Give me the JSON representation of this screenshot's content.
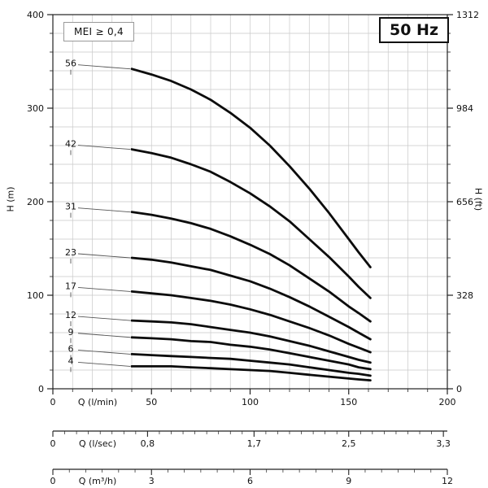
{
  "chart_data": {
    "type": "line",
    "title": "50 Hz",
    "annotation": "MEI ≥ 0,4",
    "y_left": {
      "label": "H (m)",
      "range": [
        0,
        400
      ],
      "major_ticks": [
        0,
        100,
        200,
        300,
        400
      ],
      "minor_step": 20
    },
    "y_right": {
      "label": "H (ft)",
      "tick_labels": [
        "0",
        "328",
        "656",
        "984",
        "1312"
      ],
      "tick_positions_m": [
        0,
        100,
        200,
        300,
        400
      ]
    },
    "x_main": {
      "label": "Q (l/min)",
      "range": [
        0,
        200
      ],
      "major_ticks": [
        0,
        50,
        100,
        150,
        200
      ],
      "minor_step": 10
    },
    "x_lsec": {
      "label": "Q (l/sec)",
      "tick_labels": [
        "0",
        "0,8",
        "1,7",
        "2,5",
        "3,3"
      ],
      "tick_values": [
        0,
        0.8,
        1.7,
        2.5,
        3.3
      ],
      "minor_step": 0.1,
      "lmin_per_unit": 60
    },
    "x_m3h": {
      "label": "Q (m³/h)",
      "tick_labels": [
        "0",
        "3",
        "6",
        "9",
        "12"
      ],
      "tick_values": [
        0,
        3,
        6,
        9,
        12
      ],
      "minor_step": 0.5,
      "lmin_per_unit": 16.6667
    },
    "q_lmin": [
      40,
      50,
      60,
      70,
      80,
      90,
      100,
      110,
      120,
      130,
      140,
      150,
      155,
      161
    ],
    "series": [
      {
        "stages": "56",
        "head_m": [
          342,
          336,
          329,
          320,
          309,
          295,
          279,
          260,
          238,
          214,
          188,
          160,
          146,
          130
        ]
      },
      {
        "stages": "42",
        "head_m": [
          256,
          252,
          247,
          240,
          232,
          221,
          209,
          195,
          179,
          160,
          141,
          120,
          109,
          97
        ]
      },
      {
        "stages": "31",
        "head_m": [
          189,
          186,
          182,
          177,
          171,
          163,
          154,
          144,
          132,
          118,
          104,
          88,
          81,
          72
        ]
      },
      {
        "stages": "23",
        "head_m": [
          140,
          138,
          135,
          131,
          127,
          121,
          115,
          107,
          98,
          88,
          77,
          66,
          60,
          53
        ]
      },
      {
        "stages": "17",
        "head_m": [
          104,
          102,
          100,
          97,
          94,
          90,
          85,
          79,
          72,
          65,
          57,
          48,
          44,
          39
        ]
      },
      {
        "stages": "12",
        "head_m": [
          73,
          72,
          71,
          69,
          66,
          63,
          60,
          56,
          51,
          46,
          40,
          34,
          31,
          28
        ]
      },
      {
        "stages": "9",
        "head_m": [
          55,
          54,
          53,
          51,
          50,
          47,
          45,
          42,
          38,
          34,
          30,
          26,
          23,
          21
        ]
      },
      {
        "stages": "6",
        "head_m": [
          37,
          36,
          35,
          34,
          33,
          32,
          30,
          28,
          26,
          23,
          20,
          17,
          16,
          14
        ]
      },
      {
        "stages": "4",
        "head_m": [
          24,
          24,
          24,
          23,
          22,
          21,
          20,
          19,
          17,
          15,
          13,
          11,
          10,
          9
        ]
      }
    ],
    "style": {
      "curve_color": "#0c0c0c",
      "grid_color": "#c9c9c9",
      "axis_color": "#222",
      "text_color": "#111",
      "leader_color": "#555"
    }
  }
}
